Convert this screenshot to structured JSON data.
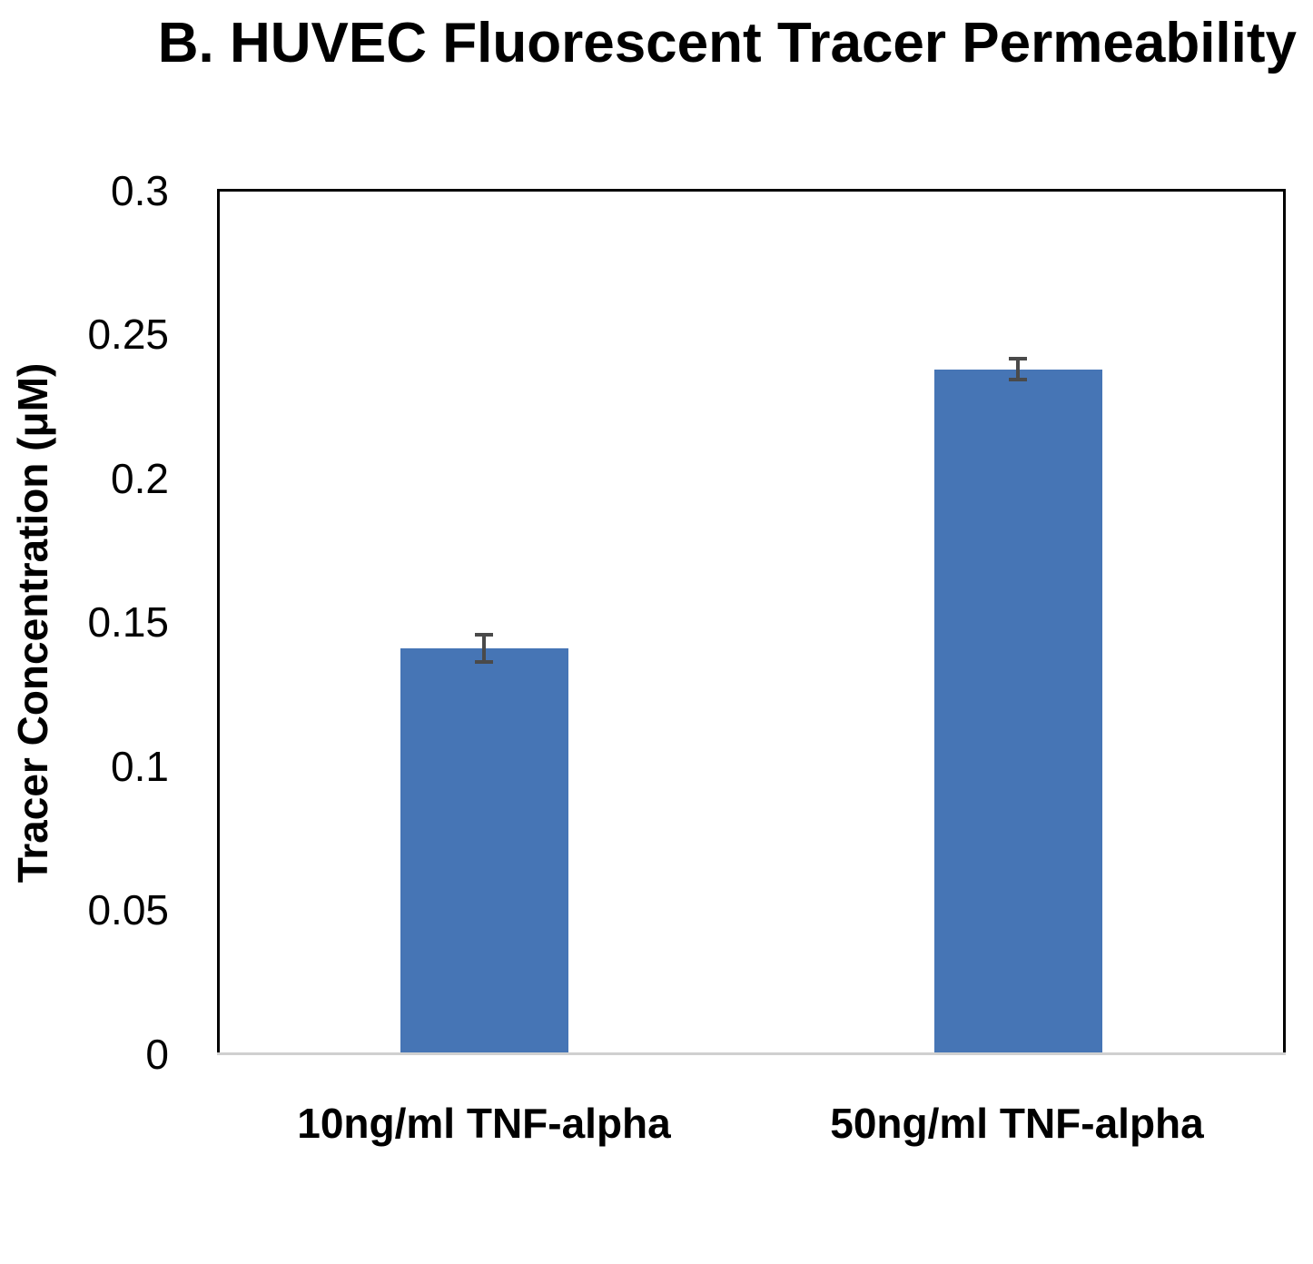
{
  "chart_data": {
    "type": "bar",
    "title": "B. HUVEC Fluorescent Tracer Permeability",
    "xlabel": "",
    "ylabel": "Tracer Concentration (μM)",
    "categories": [
      "10ng/ml TNF-alpha",
      "50ng/ml TNF-alpha"
    ],
    "values": [
      0.141,
      0.238
    ],
    "error": [
      0.0046,
      0.0036
    ],
    "ylim": [
      0,
      0.3
    ],
    "yticks": [
      "0",
      "0.05",
      "0.1",
      "0.15",
      "0.2",
      "0.25",
      "0.3"
    ],
    "grid": false,
    "legend": null,
    "bar_color": "#4675b5",
    "error_bar_color": "#4a4a4a"
  }
}
